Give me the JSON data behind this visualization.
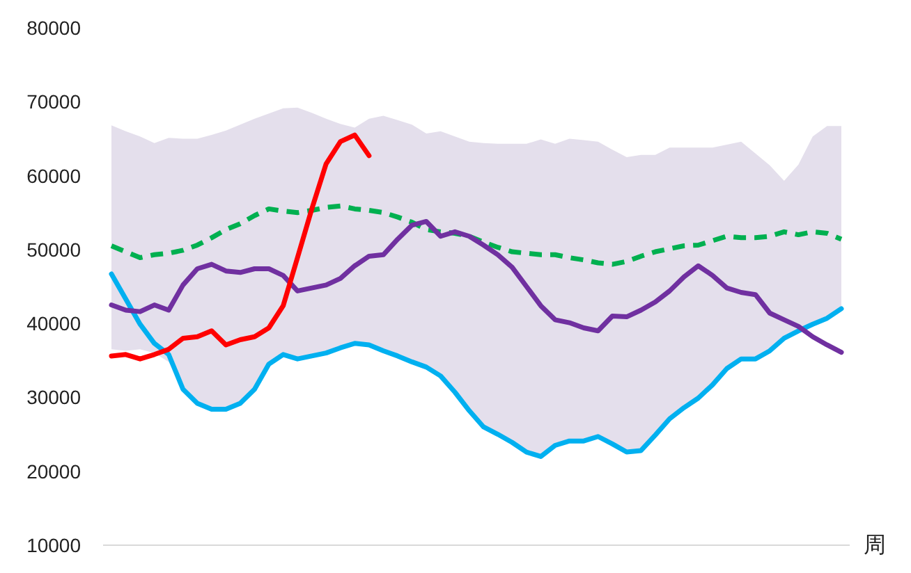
{
  "chart_data": {
    "type": "line",
    "xlabel": "周",
    "categories": [
      null,
      null,
      null,
      null,
      null,
      null,
      null,
      null,
      null,
      null,
      null,
      null,
      null,
      null,
      null,
      null,
      null,
      null,
      null,
      null,
      null,
      null,
      null,
      null,
      null,
      null,
      null,
      null,
      null,
      null,
      null,
      null,
      null,
      null,
      null,
      null,
      null,
      null,
      null,
      null,
      null,
      null,
      null,
      null,
      null,
      null,
      null,
      null,
      null,
      null,
      null,
      null
    ],
    "ylim": [
      10000,
      80000
    ],
    "yticks": [
      10000,
      20000,
      30000,
      40000,
      50000,
      60000,
      70000,
      80000
    ],
    "grid": false,
    "marker": "none",
    "series": [
      {
        "color": "#00b050",
        "line_style": "dashed",
        "values": [
          50500,
          49700,
          48900,
          49300,
          49500,
          49900,
          50600,
          51600,
          52700,
          53500,
          54600,
          55500,
          55200,
          55000,
          55300,
          55700,
          55900,
          55500,
          55300,
          55000,
          54400,
          53700,
          52700,
          52400,
          52200,
          51800,
          51000,
          50300,
          49700,
          49500,
          49300,
          49300,
          48900,
          48600,
          48200,
          48000,
          48400,
          49100,
          49700,
          50100,
          50500,
          50600,
          51200,
          51800,
          51600,
          51600,
          51800,
          52400,
          52000,
          52400,
          52200,
          51400
        ],
        "lower": [
          36500,
          36300,
          36500,
          36000,
          34800,
          31100,
          29200,
          28400,
          28400,
          29200,
          31100,
          34500,
          35800,
          35200,
          35600,
          36000,
          36700,
          37300,
          37100,
          36300,
          35600,
          34800,
          34100,
          32900,
          30700,
          28200,
          26000,
          25000,
          23900,
          22600,
          22000,
          23500,
          24100,
          24100,
          24700,
          23700,
          22600,
          22800,
          24900,
          27100,
          28600,
          29900,
          31700,
          33900,
          35200,
          35200,
          36300,
          38000,
          39000,
          39900,
          40700,
          42000
        ],
        "upper": [
          66800,
          66000,
          65300,
          64400,
          65100,
          65000,
          65000,
          65500,
          66100,
          66900,
          67700,
          68400,
          69100,
          69200,
          68500,
          67700,
          67000,
          66500,
          67700,
          68100,
          67500,
          66900,
          65700,
          66000,
          65300,
          64600,
          64400,
          64300,
          64300,
          64300,
          64900,
          64300,
          65000,
          64800,
          64600,
          63500,
          62500,
          62800,
          62800,
          63800,
          63800,
          63800,
          63800,
          64200,
          64600,
          63000,
          61400,
          59300,
          61500,
          65300,
          66700,
          66700
        ]
      },
      {
        "color": "#00b0f0",
        "values": [
          46700,
          43300,
          39900,
          37300,
          35800,
          31100,
          29200,
          28400,
          28400,
          29200,
          31100,
          34500,
          35800,
          35200,
          35600,
          36000,
          36700,
          37300,
          37100,
          36300,
          35600,
          34800,
          34100,
          32900,
          30700,
          28200,
          26000,
          25000,
          23900,
          22600,
          22000,
          23500,
          24100,
          24100,
          24700,
          23700,
          22600,
          22800,
          24900,
          27100,
          28600,
          29900,
          31700,
          33900,
          35200,
          35200,
          36300,
          38000,
          39000,
          39900,
          40700,
          42000
        ]
      },
      {
        "color": "#7030a0",
        "values": [
          42500,
          41800,
          41600,
          42500,
          41800,
          45200,
          47400,
          48000,
          47100,
          46900,
          47400,
          47400,
          46500,
          44400,
          44800,
          45200,
          46100,
          47800,
          49100,
          49300,
          51400,
          53300,
          53800,
          51800,
          52400,
          51800,
          50600,
          49300,
          47600,
          45000,
          42400,
          40500,
          40100,
          39400,
          39000,
          41000,
          40900,
          41800,
          42900,
          44400,
          46300,
          47800,
          46500,
          44800,
          44200,
          43900,
          41400,
          40500,
          39600,
          38200,
          37100,
          36100
        ]
      },
      {
        "color": "#ff0000",
        "values": [
          35600,
          35800,
          35200,
          35800,
          36500,
          38000,
          38200,
          39000,
          37100,
          37800,
          38200,
          39400,
          42400,
          48900,
          55500,
          61600,
          64600,
          65500,
          62700,
          null,
          null,
          null,
          null,
          null,
          null,
          null,
          null,
          null,
          null,
          null,
          null,
          null,
          null,
          null,
          null,
          null,
          null,
          null,
          null,
          null,
          null,
          null,
          null,
          null,
          null,
          null,
          null,
          null,
          null,
          null,
          null,
          null
        ]
      }
    ]
  }
}
